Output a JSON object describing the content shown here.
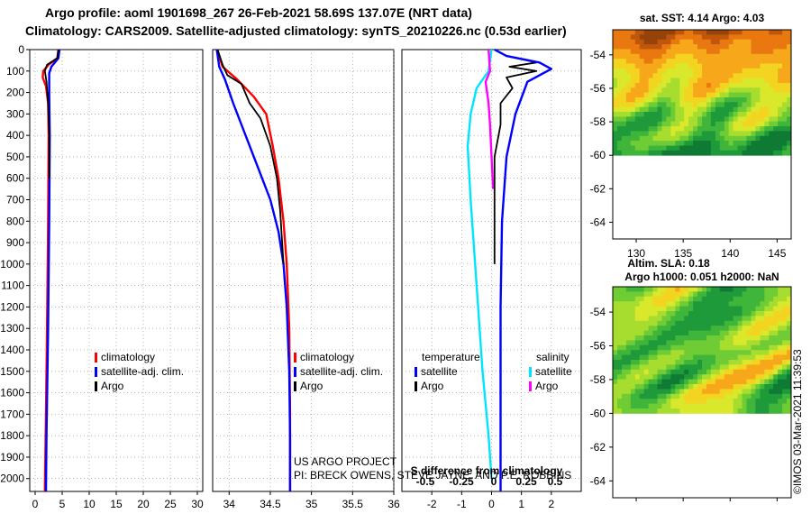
{
  "header": {
    "title_line1": "Argo profile: aoml 1901698_267 26-Feb-2021 58.69S 137.07E (NRT data)",
    "title_line2": "Climatology: CARS2009. Satellite-adjusted climatology: synTS_20210226.nc (0.53d earlier)"
  },
  "colors": {
    "climatology": "#ff0000",
    "satellite": "#0000ff",
    "argo": "#000000",
    "temperature_sat": "#00e5ff",
    "salinity_sat": "#ff00ff"
  },
  "chart_data": [
    {
      "type": "line",
      "name": "temperature",
      "xlim": [
        -1,
        31
      ],
      "ylim": [
        0,
        2060
      ],
      "x_ticks": [
        0,
        5,
        10,
        15,
        20,
        25,
        30
      ],
      "y_ticks": [
        0,
        100,
        200,
        300,
        400,
        500,
        600,
        700,
        800,
        900,
        1000,
        1100,
        1200,
        1300,
        1400,
        1500,
        1600,
        1700,
        1800,
        1900,
        2000
      ],
      "legend": [
        "climatology",
        "satellite-adj. clim.",
        "Argo"
      ],
      "series": [
        {
          "name": "climatology",
          "color": "#ff0000",
          "points": [
            [
              4.3,
              0
            ],
            [
              4.1,
              40
            ],
            [
              2.5,
              70
            ],
            [
              1.5,
              100
            ],
            [
              1.4,
              130
            ],
            [
              2.0,
              170
            ],
            [
              2.4,
              250
            ],
            [
              2.5,
              400
            ],
            [
              2.4,
              800
            ],
            [
              2.2,
              1300
            ],
            [
              2.0,
              1700
            ],
            [
              1.8,
              2060
            ]
          ]
        },
        {
          "name": "satellite-adj. clim.",
          "color": "#0000ff",
          "points": [
            [
              4.5,
              0
            ],
            [
              4.3,
              40
            ],
            [
              3.0,
              80
            ],
            [
              2.6,
              110
            ],
            [
              2.6,
              200
            ],
            [
              2.7,
              400
            ],
            [
              2.6,
              800
            ],
            [
              2.4,
              1300
            ],
            [
              2.1,
              1800
            ],
            [
              2.0,
              2060
            ]
          ]
        },
        {
          "name": "Argo",
          "color": "#000000",
          "points": [
            [
              4.3,
              0
            ],
            [
              4.1,
              40
            ],
            [
              2.2,
              70
            ],
            [
              1.8,
              100
            ],
            [
              2.1,
              150
            ],
            [
              2.4,
              250
            ],
            [
              2.6,
              400
            ],
            [
              2.6,
              600
            ]
          ]
        }
      ]
    },
    {
      "type": "line",
      "name": "salinity",
      "xlim": [
        33.8,
        36.0
      ],
      "ylim": [
        0,
        2060
      ],
      "x_ticks": [
        34,
        34.5,
        35,
        35.5,
        36
      ],
      "legend": [
        "climatology",
        "satellite-adj. clim.",
        "Argo"
      ],
      "series": [
        {
          "name": "climatology",
          "color": "#ff0000",
          "points": [
            [
              33.85,
              0
            ],
            [
              33.92,
              80
            ],
            [
              34.1,
              140
            ],
            [
              34.3,
              220
            ],
            [
              34.45,
              300
            ],
            [
              34.53,
              450
            ],
            [
              34.6,
              600
            ],
            [
              34.66,
              800
            ],
            [
              34.7,
              1000
            ],
            [
              34.73,
              1300
            ],
            [
              34.74,
              1700
            ],
            [
              34.74,
              2060
            ]
          ]
        },
        {
          "name": "satellite-adj. clim.",
          "color": "#0000ff",
          "points": [
            [
              33.85,
              0
            ],
            [
              33.88,
              80
            ],
            [
              33.95,
              140
            ],
            [
              34.05,
              250
            ],
            [
              34.2,
              400
            ],
            [
              34.35,
              550
            ],
            [
              34.5,
              700
            ],
            [
              34.6,
              850
            ],
            [
              34.66,
              1000
            ],
            [
              34.7,
              1200
            ],
            [
              34.73,
              1500
            ],
            [
              34.74,
              1800
            ],
            [
              34.74,
              2060
            ]
          ]
        },
        {
          "name": "Argo",
          "color": "#000000",
          "points": [
            [
              33.86,
              0
            ],
            [
              33.92,
              70
            ],
            [
              33.98,
              120
            ],
            [
              34.15,
              160
            ],
            [
              34.25,
              250
            ],
            [
              34.38,
              320
            ],
            [
              34.5,
              450
            ],
            [
              34.58,
              600
            ],
            [
              34.62,
              750
            ],
            [
              34.66,
              1000
            ]
          ]
        }
      ]
    },
    {
      "type": "line",
      "name": "difference",
      "xlim": [
        -3.0,
        3.0
      ],
      "ylim": [
        0,
        2060
      ],
      "x_ticks": [
        -2,
        -1,
        0,
        1,
        2
      ],
      "x_ticks_salinity": [
        "-0.5",
        "-0.25",
        "0",
        "0.25",
        "0.5"
      ],
      "xlabel": "S difference from climatology",
      "legend_left_title": "temperature",
      "legend_right_title": "salinity",
      "legend_left": [
        "satellite",
        "Argo"
      ],
      "legend_right": [
        "satellite",
        "Argo"
      ],
      "series": [
        {
          "name": "temperature satellite",
          "color": "#00e5ff",
          "points": [
            [
              0.0,
              0
            ],
            [
              -0.1,
              100
            ],
            [
              -0.5,
              180
            ],
            [
              -0.7,
              300
            ],
            [
              -0.8,
              450
            ],
            [
              -0.7,
              700
            ],
            [
              -0.6,
              900
            ],
            [
              -0.45,
              1200
            ],
            [
              -0.3,
              1500
            ],
            [
              -0.1,
              1800
            ],
            [
              0.0,
              2000
            ]
          ]
        },
        {
          "name": "salinity satellite",
          "color": "#ff00ff",
          "points": [
            [
              -0.1,
              0
            ],
            [
              -0.05,
              100
            ],
            [
              -0.2,
              150
            ],
            [
              -0.1,
              250
            ],
            [
              -0.05,
              350
            ],
            [
              0.0,
              500
            ],
            [
              0.05,
              650
            ]
          ]
        },
        {
          "name": "salinity Argo",
          "color": "#000000",
          "points": [
            [
              0.1,
              0
            ],
            [
              0.5,
              30
            ],
            [
              1.5,
              60
            ],
            [
              0.6,
              80
            ],
            [
              1.5,
              100
            ],
            [
              0.5,
              130
            ],
            [
              0.7,
              180
            ],
            [
              0.3,
              250
            ],
            [
              0.3,
              350
            ],
            [
              0.1,
              500
            ],
            [
              0.1,
              800
            ],
            [
              0.1,
              1000
            ]
          ]
        },
        {
          "name": "salinity satellite-adj. clim.",
          "color": "#0000ff",
          "points": [
            [
              0.1,
              0
            ],
            [
              0.5,
              30
            ],
            [
              1.6,
              60
            ],
            [
              2.0,
              90
            ],
            [
              1.2,
              150
            ],
            [
              0.8,
              300
            ],
            [
              0.5,
              500
            ],
            [
              0.35,
              800
            ],
            [
              0.3,
              1200
            ],
            [
              0.3,
              1600
            ],
            [
              0.3,
              2060
            ]
          ]
        }
      ]
    },
    {
      "type": "heatmap",
      "name": "sst-map",
      "title": "sat. SST: 4.14 Argo: 4.03",
      "x_ticks": [
        130,
        135,
        140,
        145
      ],
      "y_ticks": [
        -54,
        -56,
        -58,
        -60,
        -62,
        -64
      ],
      "xlim": [
        127.5,
        146.5
      ],
      "ylim": [
        -65,
        -52.5
      ]
    },
    {
      "type": "heatmap",
      "name": "sla-map",
      "title": "Altim. SLA: 0.18",
      "subtitle": "Argo h1000: 0.051 h2000: NaN",
      "y_ticks": [
        -54,
        -56,
        -58,
        -60,
        -62,
        -64
      ],
      "xlim": [
        127.5,
        146.5
      ],
      "ylim": [
        -65,
        -52.5
      ]
    }
  ],
  "footer": {
    "credit_line1": "US ARGO PROJECT",
    "credit_line2": "PI: BRECK OWENS, STEVE JAYNE, AND P.E. ROBBINS",
    "imos_stamp": "©IMOS 03-Mar-2021 11:39:53"
  }
}
